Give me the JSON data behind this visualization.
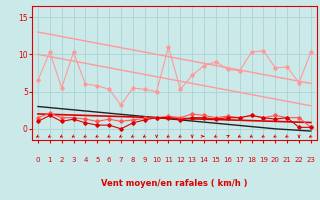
{
  "x": [
    0,
    1,
    2,
    3,
    4,
    5,
    6,
    7,
    8,
    9,
    10,
    11,
    12,
    13,
    14,
    15,
    16,
    17,
    18,
    19,
    20,
    21,
    22,
    23
  ],
  "line_top_envelope": [
    13.0,
    12.7,
    12.4,
    12.1,
    11.8,
    11.5,
    11.2,
    10.9,
    10.6,
    10.3,
    10.0,
    9.7,
    9.4,
    9.1,
    8.8,
    8.5,
    8.2,
    7.9,
    7.6,
    7.3,
    7.0,
    6.7,
    6.4,
    6.1
  ],
  "line_jagged_upper": [
    6.5,
    10.3,
    5.5,
    10.3,
    6.0,
    5.8,
    5.3,
    3.2,
    5.5,
    5.3,
    5.0,
    11.0,
    5.3,
    7.2,
    8.5,
    9.0,
    8.0,
    7.8,
    10.3,
    10.5,
    8.2,
    8.3,
    6.2,
    10.3
  ],
  "line_mid_envelope": [
    10.0,
    9.7,
    9.4,
    9.1,
    8.8,
    8.5,
    8.2,
    7.9,
    7.6,
    7.3,
    7.0,
    6.7,
    6.4,
    6.1,
    5.8,
    5.5,
    5.2,
    4.9,
    4.6,
    4.3,
    4.0,
    3.7,
    3.4,
    3.1
  ],
  "line_dark_envelope": [
    3.0,
    2.85,
    2.7,
    2.55,
    2.4,
    2.25,
    2.1,
    1.95,
    1.8,
    1.65,
    1.5,
    1.35,
    1.2,
    1.05,
    0.9,
    0.75,
    0.6,
    0.45,
    0.3,
    0.15,
    0.0,
    -0.1,
    -0.2,
    -0.3
  ],
  "line_jagged_mid": [
    1.5,
    2.1,
    1.5,
    1.5,
    1.3,
    1.0,
    1.3,
    1.0,
    1.2,
    1.4,
    1.5,
    1.7,
    1.5,
    2.0,
    1.8,
    1.5,
    1.7,
    1.5,
    1.8,
    1.5,
    1.8,
    1.5,
    1.5,
    0.2
  ],
  "line_jagged_low": [
    1.0,
    1.8,
    1.0,
    1.3,
    0.8,
    0.5,
    0.5,
    0.0,
    0.8,
    1.2,
    1.5,
    1.5,
    1.2,
    1.5,
    1.5,
    1.3,
    1.5,
    1.5,
    1.8,
    1.5,
    1.3,
    1.5,
    0.2,
    0.2
  ],
  "line_red_envelope": [
    2.0,
    1.95,
    1.9,
    1.85,
    1.8,
    1.75,
    1.7,
    1.65,
    1.6,
    1.55,
    1.5,
    1.45,
    1.4,
    1.35,
    1.3,
    1.25,
    1.2,
    1.15,
    1.1,
    1.05,
    1.0,
    0.95,
    0.9,
    0.85
  ],
  "bg_color": "#cce9e9",
  "grid_color": "#aad4d4",
  "color_light_pink": "#ff9999",
  "color_medium_red": "#ff5555",
  "color_dark_red": "#dd0000",
  "color_darkest_red": "#aa0000",
  "xlabel": "Vent moyen/en rafales ( km/h )",
  "yticks": [
    0,
    5,
    10,
    15
  ],
  "xlim": [
    -0.5,
    23.5
  ],
  "ylim": [
    -1.5,
    16.5
  ],
  "arrow_angles": [
    225,
    225,
    225,
    225,
    225,
    225,
    225,
    225,
    225,
    225,
    180,
    225,
    225,
    180,
    90,
    225,
    45,
    225,
    225,
    225,
    225,
    225,
    180,
    225
  ]
}
